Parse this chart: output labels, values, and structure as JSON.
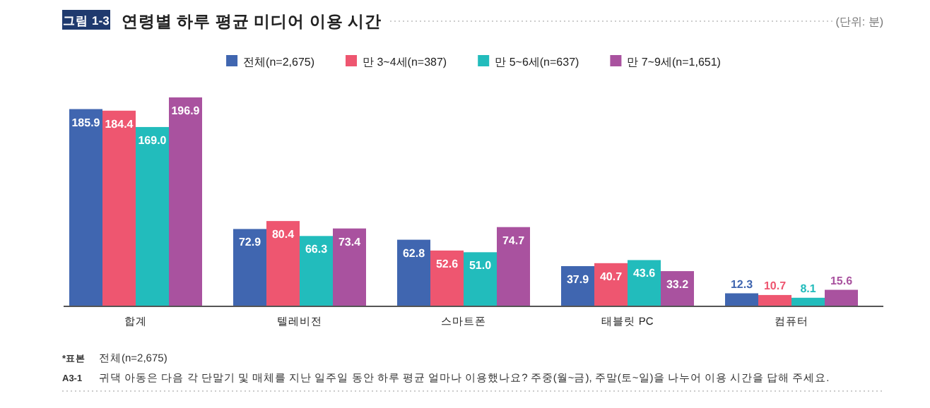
{
  "chart_data": {
    "type": "bar",
    "title": "연령별 하루 평균 미디어 이용 시간",
    "subtitle": "(단위: 분)",
    "annotations": [
      "그림 1-3",
      "*표본",
      "전체(n=2,675)",
      "A3-1",
      "귀댁 아동은 다음 각 단말기 및 매체를 지난 일주일 동안 하루 평균 얼마나 이용했나요? 주중(월~금), 주말(토~일)을 나누어 이용 시간을 답해 주세요."
    ],
    "categories": [
      "합계",
      "텔레비전",
      "스마트폰",
      "태블릿 PC",
      "컴퓨터"
    ],
    "series": [
      {
        "name": "전체(n=2,675)",
        "color": "#4066b0",
        "values": [
          185.9,
          72.9,
          62.8,
          37.9,
          12.3
        ],
        "value_labels": [
          "185.9",
          "72.9",
          "62.8",
          "37.9",
          "12.3"
        ]
      },
      {
        "name": "만 3~4세(n=387)",
        "color": "#ee5670",
        "values": [
          184.4,
          80.4,
          52.6,
          40.7,
          10.7
        ],
        "value_labels": [
          "184.4",
          "80.4",
          "52.6",
          "40.7",
          "10.7"
        ]
      },
      {
        "name": "만 5~6세(n=637)",
        "color": "#22bcbc",
        "values": [
          169.0,
          66.3,
          51.0,
          43.6,
          8.1
        ],
        "value_labels": [
          "169.0",
          "66.3",
          "51.0",
          "43.6",
          "8.1"
        ]
      },
      {
        "name": "만 7~9세(n=1,651)",
        "color": "#a9529f",
        "values": [
          196.9,
          73.4,
          74.7,
          33.2,
          15.6
        ],
        "value_labels": [
          "196.9",
          "73.4",
          "74.7",
          "33.2",
          "15.6"
        ]
      }
    ],
    "legend": "top"
  }
}
